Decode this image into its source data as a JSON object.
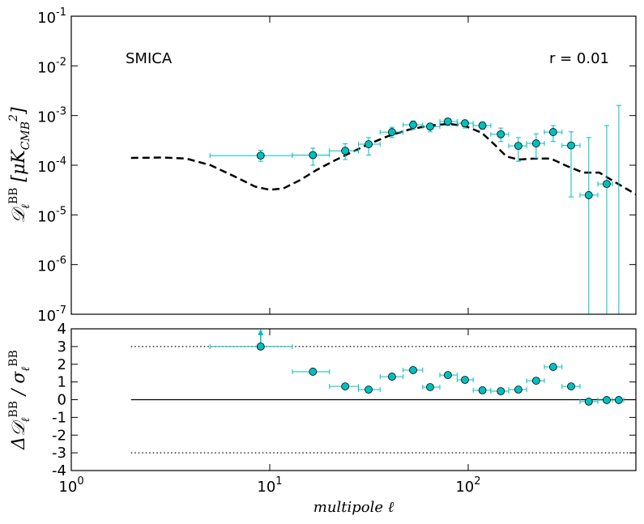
{
  "chart_data": [
    {
      "type": "errorbar",
      "xscale": "log",
      "yscale": "log",
      "xlim": [
        1,
        700
      ],
      "ylim": [
        1e-07,
        0.1
      ],
      "xticks": [
        1,
        10,
        100
      ],
      "show_xtick_labels": false,
      "yticks": [
        {
          "value": 1e-07,
          "label": "10",
          "sup": "-7"
        },
        {
          "value": 1e-06,
          "label": "10",
          "sup": "-6"
        },
        {
          "value": 1e-05,
          "label": "10",
          "sup": "-5"
        },
        {
          "value": 0.0001,
          "label": "10",
          "sup": "-4"
        },
        {
          "value": 0.001,
          "label": "10",
          "sup": "-3"
        },
        {
          "value": 0.01,
          "label": "10",
          "sup": "-2"
        },
        {
          "value": 0.1,
          "label": "10",
          "sup": "-1"
        }
      ],
      "ylabel": [
        {
          "text": "𝒟"
        },
        {
          "text": "ℓ",
          "sub": true
        },
        {
          "text": "BB",
          "sup": true
        },
        {
          "text": "  [μK"
        },
        {
          "text": "CMB",
          "sub": true
        },
        {
          "text": "2",
          "sup": true
        },
        {
          "text": "]"
        }
      ],
      "annotations": [
        {
          "text": "SMICA",
          "color": "#00bfbf",
          "corner": "top-left"
        },
        {
          "text": "r = 0.01",
          "color": "#000000",
          "corner": "top-right"
        }
      ],
      "model": {
        "color": "#000000",
        "style": "dashed",
        "x": [
          2,
          2.87,
          3.8,
          5.04,
          6.67,
          8.45,
          10,
          11.7,
          14.2,
          17.1,
          20.6,
          24.9,
          31.5,
          39.8,
          50.3,
          63.7,
          80.5,
          97.2,
          117,
          135,
          156,
          179,
          216,
          261,
          315,
          380,
          458,
          553,
          700
        ],
        "values": [
          0.00014,
          0.000143,
          0.000136,
          0.0001,
          5.9e-05,
          3.7e-05,
          3.2e-05,
          3.4e-05,
          5e-05,
          7.9e-05,
          0.000117,
          0.00017,
          0.000266,
          0.00039,
          0.00052,
          0.00063,
          0.00068,
          0.00061,
          0.00045,
          0.000266,
          0.00015,
          0.00013,
          0.000136,
          0.000136,
          9.6e-05,
          7.1e-05,
          7.1e-05,
          4.5e-05,
          2.6e-05
        ]
      },
      "bin_edges": [
        5,
        13,
        20,
        28,
        36,
        47,
        59,
        72,
        88,
        106,
        130,
        160,
        197,
        242,
        297,
        366,
        450,
        533,
        608
      ],
      "points": {
        "color": "#00bfbf",
        "x": [
          9,
          16.5,
          24,
          31.5,
          41.3,
          52.8,
          64.3,
          79,
          96.3,
          118,
          146,
          179,
          220,
          268,
          330,
          405,
          499,
          574
        ],
        "values": [
          0.000156,
          0.00016,
          0.000195,
          0.000265,
          0.000465,
          0.00065,
          0.0006,
          0.00076,
          0.0007,
          0.00063,
          0.00042,
          0.000245,
          0.000275,
          0.000465,
          0.00025,
          2.5e-05,
          4.2e-05,
          null
        ],
        "lower": [
          0.00012,
          0.0001,
          0.00013,
          0.00016,
          0.00036,
          0.00053,
          0.00047,
          0.00063,
          0.00056,
          0.00053,
          0.0003,
          0.00012,
          0.00014,
          0.0003,
          2.3e-05,
          null,
          null,
          null
        ],
        "upper": [
          0.0002,
          0.00022,
          0.00027,
          0.00036,
          0.00058,
          0.00078,
          0.0007,
          0.00086,
          0.00078,
          0.00074,
          0.00056,
          0.00036,
          0.00043,
          0.00063,
          0.00047,
          0.00036,
          0.00063,
          0.0016
        ]
      }
    },
    {
      "type": "residual",
      "xscale": "log",
      "yscale": "linear",
      "xlim": [
        1,
        700
      ],
      "ylim": [
        -4,
        4
      ],
      "xticks": [
        {
          "value": 1,
          "label": "10",
          "sup": "0"
        },
        {
          "value": 10,
          "label": "10",
          "sup": "1"
        },
        {
          "value": 100,
          "label": "10",
          "sup": "2"
        }
      ],
      "show_xtick_labels": true,
      "yticks": [
        -4,
        -3,
        -2,
        -1,
        0,
        1,
        2,
        3,
        4
      ],
      "xlabel": "multipole ℓ",
      "ylabel": [
        {
          "text": "Δ𝒟"
        },
        {
          "text": "ℓ",
          "sub": true
        },
        {
          "text": "BB",
          "sup": true
        },
        {
          "text": " / σ"
        },
        {
          "text": "ℓ",
          "sub": true
        },
        {
          "text": "BB",
          "sup": true
        }
      ],
      "hline_xmin": 2,
      "hlines": [
        {
          "y": 0,
          "style": "solid"
        },
        {
          "y": 3,
          "style": "dotted"
        },
        {
          "y": -3,
          "style": "dotted"
        }
      ],
      "bin_edges": [
        5,
        13,
        20,
        28,
        36,
        47,
        59,
        72,
        88,
        106,
        130,
        160,
        197,
        242,
        297,
        366,
        450,
        533,
        608
      ],
      "points": {
        "color": "#00bfbf",
        "x": [
          9,
          16.5,
          24,
          31.5,
          41.3,
          52.8,
          64.3,
          79,
          96.3,
          118,
          146,
          179,
          220,
          268,
          330,
          405,
          499,
          574
        ],
        "values": [
          3,
          1.58,
          0.75,
          0.57,
          1.3,
          1.67,
          0.71,
          1.39,
          1.12,
          0.53,
          0.48,
          0.57,
          1.07,
          1.85,
          0.75,
          -0.11,
          -0.02,
          -0.02
        ],
        "clipped": [
          true,
          false,
          false,
          false,
          false,
          false,
          false,
          false,
          false,
          false,
          false,
          false,
          false,
          false,
          false,
          false,
          false,
          false
        ]
      }
    }
  ]
}
